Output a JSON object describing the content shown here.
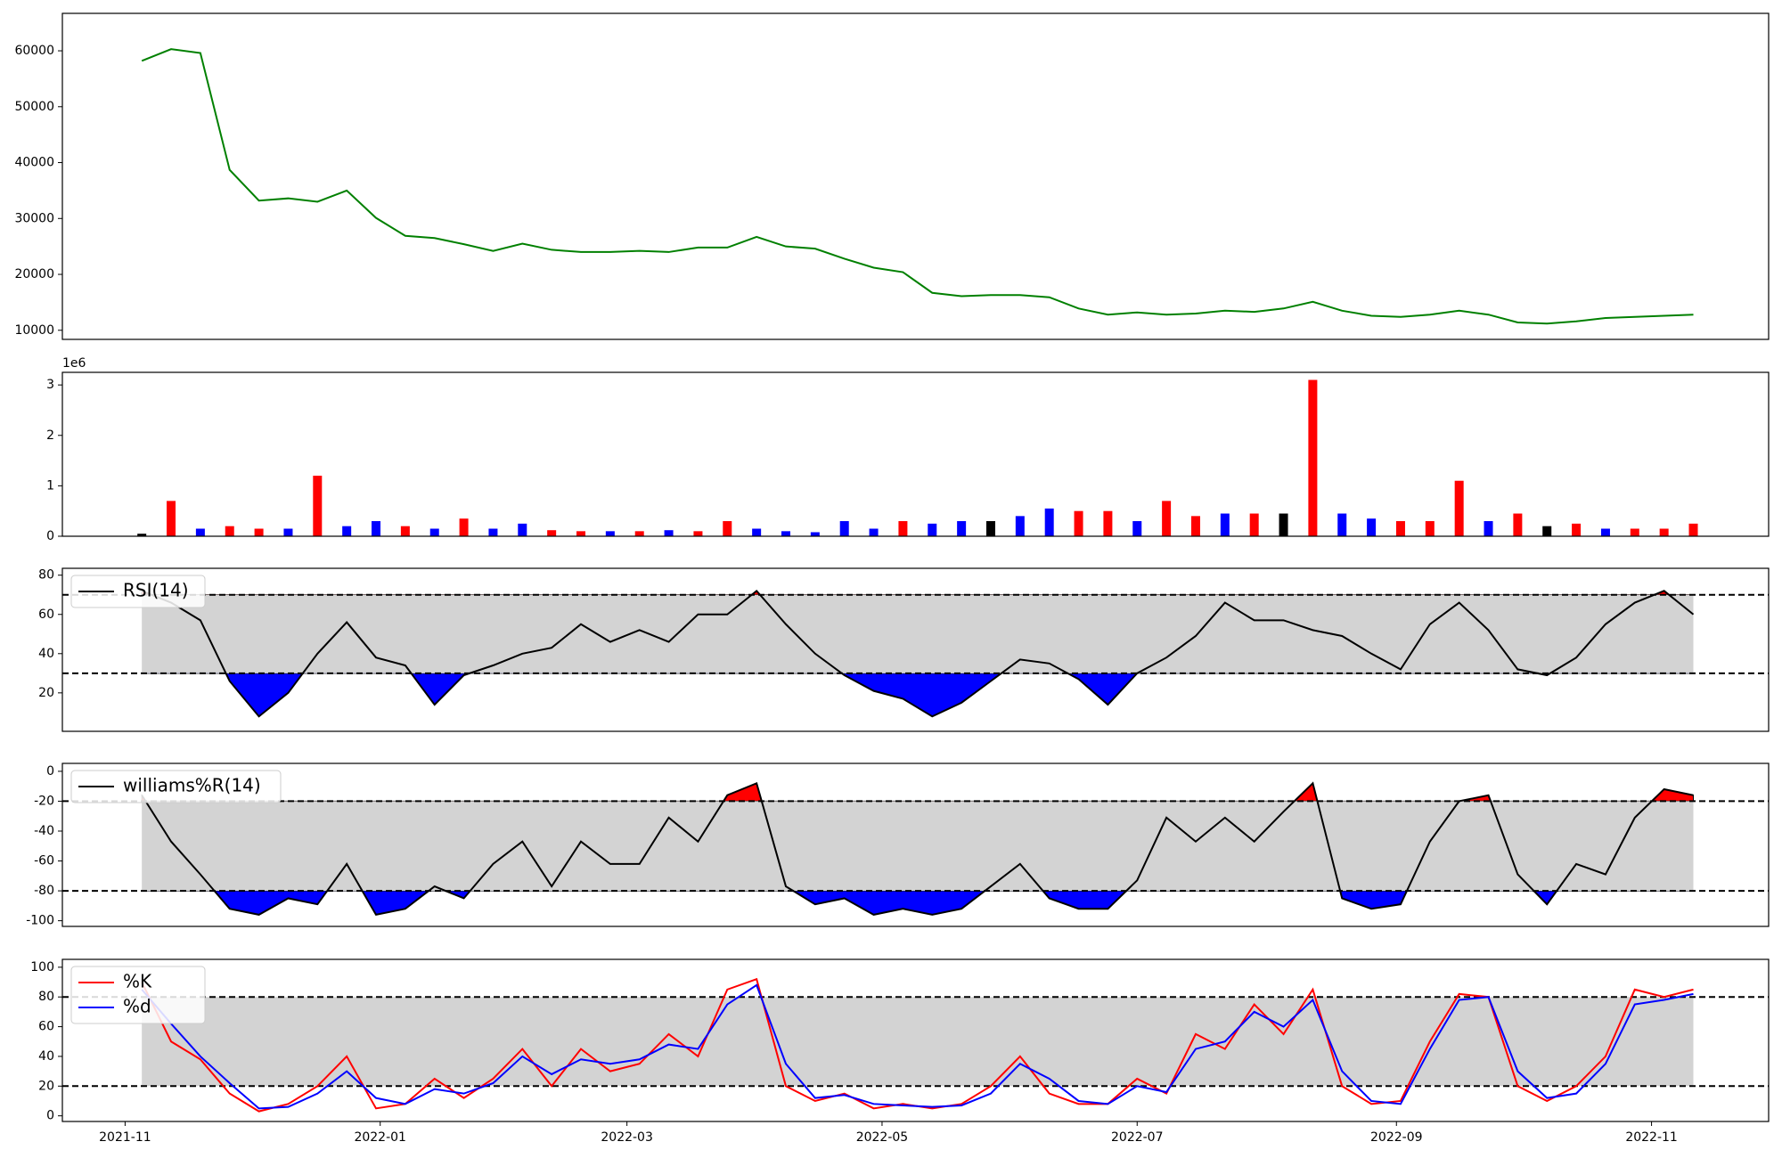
{
  "chart_data": [
    {
      "type": "line",
      "x": [
        "2021-11-05",
        "2021-11-12",
        "2021-11-19",
        "2021-11-26",
        "2021-12-03",
        "2021-12-10",
        "2021-12-17",
        "2021-12-24",
        "2021-12-31",
        "2022-01-07",
        "2022-01-14",
        "2022-01-21",
        "2022-01-28",
        "2022-02-04",
        "2022-02-11",
        "2022-02-18",
        "2022-02-25",
        "2022-03-04",
        "2022-03-11",
        "2022-03-18",
        "2022-03-25",
        "2022-04-01",
        "2022-04-08",
        "2022-04-15",
        "2022-04-22",
        "2022-04-29",
        "2022-05-06",
        "2022-05-13",
        "2022-05-20",
        "2022-05-27",
        "2022-06-03",
        "2022-06-10",
        "2022-06-17",
        "2022-06-24",
        "2022-07-01",
        "2022-07-08",
        "2022-07-15",
        "2022-07-22",
        "2022-07-29",
        "2022-08-05",
        "2022-08-12",
        "2022-08-19",
        "2022-08-26",
        "2022-09-02",
        "2022-09-09",
        "2022-09-16",
        "2022-09-23",
        "2022-09-30",
        "2022-10-07",
        "2022-10-14",
        "2022-10-21",
        "2022-10-28",
        "2022-11-04",
        "2022-11-11"
      ],
      "xlim": [
        "2021-10-17",
        "2022-11-29"
      ],
      "ylim": [
        8370,
        66700
      ],
      "yticks": [
        10000,
        20000,
        30000,
        40000,
        50000,
        60000
      ],
      "series": [
        {
          "color": "green",
          "values": [
            58200,
            60300,
            59600,
            38700,
            33200,
            33600,
            33000,
            35000,
            30100,
            26900,
            26500,
            25400,
            24200,
            25500,
            24400,
            24000,
            24000,
            24200,
            24000,
            24800,
            24800,
            26700,
            25000,
            24600,
            22800,
            21200,
            20400,
            16700,
            16100,
            16300,
            16300,
            15900,
            13900,
            12800,
            13200,
            12800,
            13000,
            13500,
            13300,
            13900,
            15100,
            13500,
            12600,
            12400,
            12800,
            13500,
            12800,
            11400,
            11200,
            11600,
            12200,
            12400,
            12600,
            12800
          ]
        }
      ]
    },
    {
      "type": "bar",
      "x": [
        "2021-11-05",
        "2021-11-12",
        "2021-11-19",
        "2021-11-26",
        "2021-12-03",
        "2021-12-10",
        "2021-12-17",
        "2021-12-24",
        "2021-12-31",
        "2022-01-07",
        "2022-01-14",
        "2022-01-21",
        "2022-01-28",
        "2022-02-04",
        "2022-02-11",
        "2022-02-18",
        "2022-02-25",
        "2022-03-04",
        "2022-03-11",
        "2022-03-18",
        "2022-03-25",
        "2022-04-01",
        "2022-04-08",
        "2022-04-15",
        "2022-04-22",
        "2022-04-29",
        "2022-05-06",
        "2022-05-13",
        "2022-05-20",
        "2022-05-27",
        "2022-06-03",
        "2022-06-10",
        "2022-06-17",
        "2022-06-24",
        "2022-07-01",
        "2022-07-08",
        "2022-07-15",
        "2022-07-22",
        "2022-07-29",
        "2022-08-05",
        "2022-08-12",
        "2022-08-19",
        "2022-08-26",
        "2022-09-02",
        "2022-09-09",
        "2022-09-16",
        "2022-09-23",
        "2022-09-30",
        "2022-10-07",
        "2022-10-14",
        "2022-10-21",
        "2022-10-28",
        "2022-11-04",
        "2022-11-11"
      ],
      "xlim": [
        "2021-10-17",
        "2022-11-29"
      ],
      "ylim": [
        0,
        3.25
      ],
      "yticks": [
        0,
        1,
        2,
        3
      ],
      "offset_text": "1e6",
      "values": [
        0.05,
        0.7,
        0.15,
        0.2,
        0.15,
        0.15,
        1.2,
        0.2,
        0.3,
        0.2,
        0.15,
        0.35,
        0.15,
        0.25,
        0.12,
        0.1,
        0.1,
        0.1,
        0.12,
        0.1,
        0.3,
        0.15,
        0.1,
        0.08,
        0.3,
        0.15,
        0.3,
        0.25,
        0.3,
        0.3,
        0.4,
        0.55,
        0.5,
        0.5,
        0.3,
        0.7,
        0.4,
        0.45,
        0.45,
        0.45,
        3.1,
        0.45,
        0.35,
        0.3,
        0.3,
        1.1,
        0.3,
        0.45,
        0.2,
        0.25,
        0.15,
        0.15,
        0.15,
        0.25
      ],
      "colors": [
        "black",
        "red",
        "blue",
        "red",
        "red",
        "blue",
        "red",
        "blue",
        "blue",
        "red",
        "blue",
        "red",
        "blue",
        "blue",
        "red",
        "red",
        "blue",
        "red",
        "blue",
        "red",
        "red",
        "blue",
        "blue",
        "blue",
        "blue",
        "blue",
        "red",
        "blue",
        "blue",
        "black",
        "blue",
        "blue",
        "red",
        "red",
        "blue",
        "red",
        "red",
        "blue",
        "red",
        "black",
        "red",
        "blue",
        "blue",
        "red",
        "red",
        "red",
        "blue",
        "red",
        "black",
        "red",
        "blue",
        "red",
        "red",
        "red"
      ]
    },
    {
      "type": "line",
      "x": [
        "2021-11-05",
        "2021-11-12",
        "2021-11-19",
        "2021-11-26",
        "2021-12-03",
        "2021-12-10",
        "2021-12-17",
        "2021-12-24",
        "2021-12-31",
        "2022-01-07",
        "2022-01-14",
        "2022-01-21",
        "2022-01-28",
        "2022-02-04",
        "2022-02-11",
        "2022-02-18",
        "2022-02-25",
        "2022-03-04",
        "2022-03-11",
        "2022-03-18",
        "2022-03-25",
        "2022-04-01",
        "2022-04-08",
        "2022-04-15",
        "2022-04-22",
        "2022-04-29",
        "2022-05-06",
        "2022-05-13",
        "2022-05-20",
        "2022-05-27",
        "2022-06-03",
        "2022-06-10",
        "2022-06-17",
        "2022-06-24",
        "2022-07-01",
        "2022-07-08",
        "2022-07-15",
        "2022-07-22",
        "2022-07-29",
        "2022-08-05",
        "2022-08-12",
        "2022-08-19",
        "2022-08-26",
        "2022-09-02",
        "2022-09-09",
        "2022-09-16",
        "2022-09-23",
        "2022-09-30",
        "2022-10-07",
        "2022-10-14",
        "2022-10-21",
        "2022-10-28",
        "2022-11-04",
        "2022-11-11"
      ],
      "xlim": [
        "2021-10-17",
        "2022-11-29"
      ],
      "ylim": [
        0.4,
        83.5
      ],
      "yticks": [
        20,
        40,
        60,
        80
      ],
      "hlines": [
        30,
        70
      ],
      "band_color": "lightgray",
      "below_color": "blue",
      "above_color": "red",
      "legend": "upper left",
      "series": [
        {
          "name": "RSI(14)",
          "color": "black",
          "values": [
            72,
            66,
            57,
            26,
            8,
            20,
            40,
            56,
            38,
            34,
            14,
            29,
            34,
            40,
            43,
            55,
            46,
            52,
            46,
            60,
            60,
            72,
            55,
            40,
            29,
            21,
            17,
            8,
            15,
            26,
            37,
            35,
            27,
            14,
            30,
            38,
            49,
            66,
            57,
            57,
            52,
            49,
            40,
            32,
            55,
            66,
            52,
            32,
            29,
            38,
            55,
            66,
            72,
            60
          ]
        }
      ]
    },
    {
      "type": "line",
      "x": [
        "2021-11-05",
        "2021-11-12",
        "2021-11-19",
        "2021-11-26",
        "2021-12-03",
        "2021-12-10",
        "2021-12-17",
        "2021-12-24",
        "2021-12-31",
        "2022-01-07",
        "2022-01-14",
        "2022-01-21",
        "2022-01-28",
        "2022-02-04",
        "2022-02-11",
        "2022-02-18",
        "2022-02-25",
        "2022-03-04",
        "2022-03-11",
        "2022-03-18",
        "2022-03-25",
        "2022-04-01",
        "2022-04-08",
        "2022-04-15",
        "2022-04-22",
        "2022-04-29",
        "2022-05-06",
        "2022-05-13",
        "2022-05-20",
        "2022-05-27",
        "2022-06-03",
        "2022-06-10",
        "2022-06-17",
        "2022-06-24",
        "2022-07-01",
        "2022-07-08",
        "2022-07-15",
        "2022-07-22",
        "2022-07-29",
        "2022-08-05",
        "2022-08-12",
        "2022-08-19",
        "2022-08-26",
        "2022-09-02",
        "2022-09-09",
        "2022-09-16",
        "2022-09-23",
        "2022-09-30",
        "2022-10-07",
        "2022-10-14",
        "2022-10-21",
        "2022-10-28",
        "2022-11-04",
        "2022-11-11"
      ],
      "xlim": [
        "2021-10-17",
        "2022-11-29"
      ],
      "ylim": [
        -103.8,
        5.3
      ],
      "yticks": [
        -100,
        -80,
        -60,
        -40,
        -20,
        0
      ],
      "hlines": [
        -80,
        -20
      ],
      "band_color": "lightgray",
      "below_color": "blue",
      "above_color": "red",
      "legend": "upper left",
      "series": [
        {
          "name": "williams%R(14)",
          "color": "black",
          "values": [
            -16,
            -47,
            -69,
            -92,
            -96,
            -85,
            -89,
            -62,
            -96,
            -92,
            -77,
            -85,
            -62,
            -47,
            -77,
            -47,
            -62,
            -62,
            -31,
            -47,
            -16,
            -8,
            -77,
            -89,
            -85,
            -96,
            -92,
            -96,
            -92,
            -77,
            -62,
            -85,
            -92,
            -92,
            -73,
            -31,
            -47,
            -31,
            -47,
            -27,
            -8,
            -85,
            -92,
            -89,
            -47,
            -20,
            -16,
            -69,
            -89,
            -62,
            -69,
            -31,
            -12,
            -16
          ]
        }
      ]
    },
    {
      "type": "line",
      "x": [
        "2021-11-05",
        "2021-11-12",
        "2021-11-19",
        "2021-11-26",
        "2021-12-03",
        "2021-12-10",
        "2021-12-17",
        "2021-12-24",
        "2021-12-31",
        "2022-01-07",
        "2022-01-14",
        "2022-01-21",
        "2022-01-28",
        "2022-02-04",
        "2022-02-11",
        "2022-02-18",
        "2022-02-25",
        "2022-03-04",
        "2022-03-11",
        "2022-03-18",
        "2022-03-25",
        "2022-04-01",
        "2022-04-08",
        "2022-04-15",
        "2022-04-22",
        "2022-04-29",
        "2022-05-06",
        "2022-05-13",
        "2022-05-20",
        "2022-05-27",
        "2022-06-03",
        "2022-06-10",
        "2022-06-17",
        "2022-06-24",
        "2022-07-01",
        "2022-07-08",
        "2022-07-15",
        "2022-07-22",
        "2022-07-29",
        "2022-08-05",
        "2022-08-12",
        "2022-08-19",
        "2022-08-26",
        "2022-09-02",
        "2022-09-09",
        "2022-09-16",
        "2022-09-23",
        "2022-09-30",
        "2022-10-07",
        "2022-10-14",
        "2022-10-21",
        "2022-10-28",
        "2022-11-04",
        "2022-11-11"
      ],
      "xlim": [
        "2021-10-17",
        "2022-11-29"
      ],
      "xticks": [
        {
          "value": "2021-11-01",
          "label": "2021-11"
        },
        {
          "value": "2022-01-01",
          "label": "2022-01"
        },
        {
          "value": "2022-03-01",
          "label": "2022-03"
        },
        {
          "value": "2022-05-01",
          "label": "2022-05"
        },
        {
          "value": "2022-07-01",
          "label": "2022-07"
        },
        {
          "value": "2022-09-01",
          "label": "2022-09"
        },
        {
          "value": "2022-11-01",
          "label": "2022-11"
        }
      ],
      "ylim": [
        -3.8,
        105.3
      ],
      "yticks": [
        0,
        20,
        40,
        60,
        80,
        100
      ],
      "hlines": [
        20,
        80
      ],
      "band_color": "lightgray",
      "legend": "upper left",
      "series": [
        {
          "name": "%K",
          "color": "red",
          "values": [
            90,
            50,
            38,
            15,
            3,
            8,
            20,
            40,
            5,
            8,
            25,
            12,
            25,
            45,
            20,
            45,
            30,
            35,
            55,
            40,
            85,
            92,
            20,
            10,
            15,
            5,
            8,
            5,
            8,
            20,
            40,
            15,
            8,
            8,
            25,
            15,
            55,
            45,
            75,
            55,
            85,
            20,
            8,
            10,
            50,
            82,
            80,
            20,
            10,
            20,
            40,
            85,
            80,
            85
          ]
        },
        {
          "name": "%d",
          "color": "blue",
          "values": [
            85,
            62,
            40,
            22,
            5,
            6,
            15,
            30,
            12,
            8,
            18,
            15,
            22,
            40,
            28,
            38,
            35,
            38,
            48,
            45,
            75,
            88,
            35,
            12,
            14,
            8,
            7,
            6,
            7,
            15,
            35,
            25,
            10,
            8,
            20,
            16,
            45,
            50,
            70,
            60,
            78,
            30,
            10,
            8,
            45,
            78,
            80,
            30,
            12,
            15,
            35,
            75,
            78,
            82
          ]
        }
      ]
    }
  ]
}
